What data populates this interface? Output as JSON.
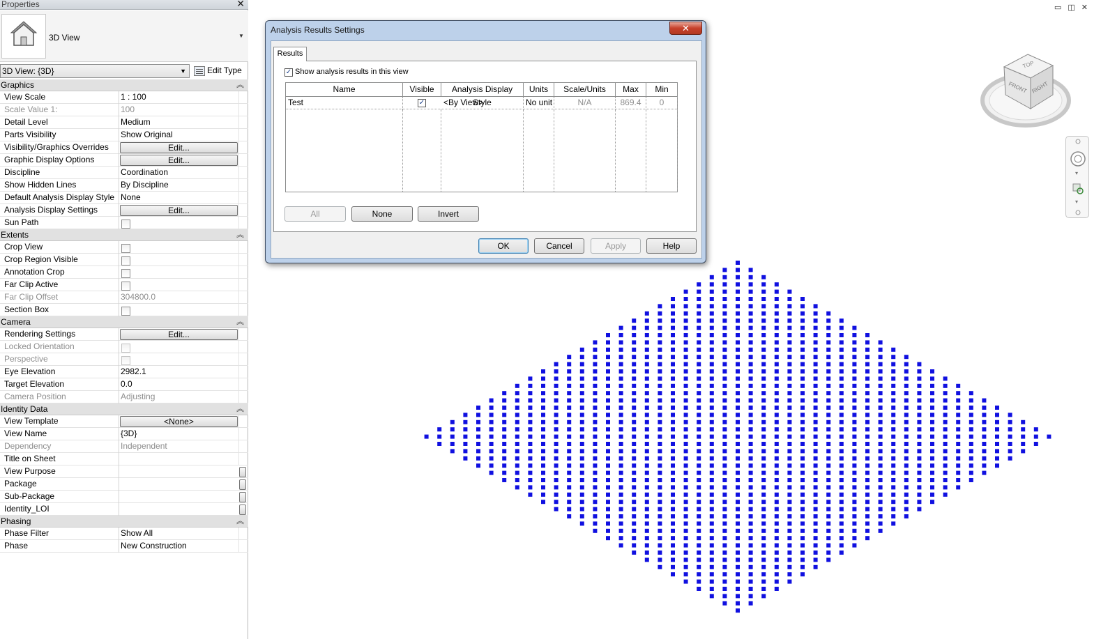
{
  "properties": {
    "title": "Properties",
    "close_glyph": "✕",
    "type_name": "3D View",
    "instance_selector": "3D View: {3D}",
    "edit_type_label": "Edit Type",
    "groups": [
      {
        "name": "Graphics",
        "rows": [
          {
            "label": "View Scale",
            "value": "1 : 100",
            "kind": "text"
          },
          {
            "label": "Scale Value    1:",
            "value": "100",
            "kind": "text",
            "disabled": true
          },
          {
            "label": "Detail Level",
            "value": "Medium",
            "kind": "text"
          },
          {
            "label": "Parts Visibility",
            "value": "Show Original",
            "kind": "text"
          },
          {
            "label": "Visibility/Graphics Overrides",
            "value": "Edit...",
            "kind": "button"
          },
          {
            "label": "Graphic Display Options",
            "value": "Edit...",
            "kind": "button"
          },
          {
            "label": "Discipline",
            "value": "Coordination",
            "kind": "text"
          },
          {
            "label": "Show Hidden Lines",
            "value": "By Discipline",
            "kind": "text"
          },
          {
            "label": "Default Analysis Display Style",
            "value": "None",
            "kind": "text"
          },
          {
            "label": "Analysis Display Settings",
            "value": "Edit...",
            "kind": "button"
          },
          {
            "label": "Sun Path",
            "value": "",
            "kind": "check"
          }
        ]
      },
      {
        "name": "Extents",
        "rows": [
          {
            "label": "Crop View",
            "value": "",
            "kind": "check"
          },
          {
            "label": "Crop Region Visible",
            "value": "",
            "kind": "check"
          },
          {
            "label": "Annotation Crop",
            "value": "",
            "kind": "check"
          },
          {
            "label": "Far Clip Active",
            "value": "",
            "kind": "check"
          },
          {
            "label": "Far Clip Offset",
            "value": "304800.0",
            "kind": "text",
            "disabled": true
          },
          {
            "label": "Section Box",
            "value": "",
            "kind": "check"
          }
        ]
      },
      {
        "name": "Camera",
        "rows": [
          {
            "label": "Rendering Settings",
            "value": "Edit...",
            "kind": "button"
          },
          {
            "label": "Locked Orientation",
            "value": "",
            "kind": "check",
            "disabled": true
          },
          {
            "label": "Perspective",
            "value": "",
            "kind": "check",
            "disabled": true
          },
          {
            "label": "Eye Elevation",
            "value": "2982.1",
            "kind": "text"
          },
          {
            "label": "Target Elevation",
            "value": "0.0",
            "kind": "text"
          },
          {
            "label": "Camera Position",
            "value": "Adjusting",
            "kind": "text",
            "disabled": true
          }
        ]
      },
      {
        "name": "Identity Data",
        "rows": [
          {
            "label": "View Template",
            "value": "<None>",
            "kind": "button"
          },
          {
            "label": "View Name",
            "value": "{3D}",
            "kind": "text"
          },
          {
            "label": "Dependency",
            "value": "Independent",
            "kind": "text",
            "disabled": true
          },
          {
            "label": "Title on Sheet",
            "value": "",
            "kind": "text"
          },
          {
            "label": "View Purpose",
            "value": "",
            "kind": "mini"
          },
          {
            "label": "Package",
            "value": "",
            "kind": "mini"
          },
          {
            "label": "Sub-Package",
            "value": "",
            "kind": "mini"
          },
          {
            "label": "Identity_LOI",
            "value": "",
            "kind": "mini"
          }
        ]
      },
      {
        "name": "Phasing",
        "rows": [
          {
            "label": "Phase Filter",
            "value": "Show All",
            "kind": "text"
          },
          {
            "label": "Phase",
            "value": "New Construction",
            "kind": "text"
          }
        ]
      }
    ]
  },
  "viewport": {
    "window_controls": "▭ ◫ ✕",
    "viewcube_faces": {
      "top": "TOP",
      "front": "FRONT",
      "right": "RIGHT"
    },
    "point_color": "#1010e0"
  },
  "dialog": {
    "title": "Analysis Results Settings",
    "close_glyph": "✕",
    "tab": "Results",
    "show_results_label": "Show analysis results in this view",
    "show_results_checked": "✓",
    "columns": [
      "Name",
      "Visible",
      "Analysis Display Style",
      "Units",
      "Scale/Units",
      "Max",
      "Min"
    ],
    "rows": [
      {
        "name": "Test",
        "visible": "✓",
        "style": "<By View>",
        "units": "No unit",
        "scale": "N/A",
        "max": "869.4",
        "min": "0"
      }
    ],
    "buttons": {
      "all": "All",
      "none": "None",
      "invert": "Invert",
      "ok": "OK",
      "cancel": "Cancel",
      "apply": "Apply",
      "help": "Help"
    }
  }
}
